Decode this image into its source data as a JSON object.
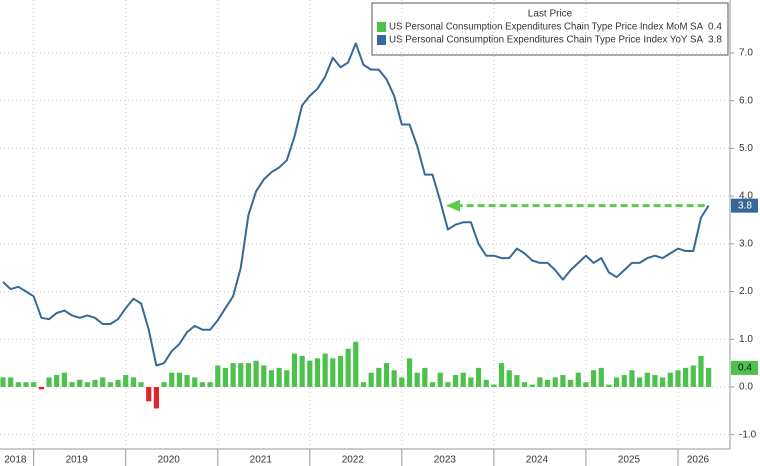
{
  "chart_data": {
    "type": "bar_line",
    "legend_title": "Last Price",
    "legend": "top-right",
    "categories": [
      null,
      null,
      "2018",
      null,
      null,
      null,
      null,
      null,
      null,
      null,
      "2019",
      null,
      null,
      null,
      null,
      null,
      null,
      null,
      null,
      null,
      null,
      null,
      "2020",
      null,
      null,
      null,
      null,
      null,
      null,
      null,
      null,
      null,
      null,
      null,
      "2021",
      null,
      null,
      null,
      null,
      null,
      null,
      null,
      null,
      null,
      null,
      null,
      "2022",
      null,
      null,
      null,
      null,
      null,
      null,
      null,
      null,
      null,
      null,
      null,
      "2023",
      null,
      null,
      null,
      null,
      null,
      null,
      null,
      null,
      null,
      null,
      null,
      "2024",
      null,
      null,
      null,
      null,
      null,
      null,
      null,
      null,
      null,
      null,
      null,
      "2025",
      null,
      null,
      null,
      null,
      null,
      null,
      null,
      null,
      "2026",
      null
    ],
    "series": [
      {
        "name": "US Personal Consumption Expenditures Chain Type Price Index MoM SA",
        "type": "bar",
        "color": "#4cc24c",
        "negative_color": "#e0262a",
        "values": [
          0.2,
          0.2,
          0.1,
          0.1,
          0.1,
          -0.05,
          0.2,
          0.25,
          0.3,
          0.1,
          0.15,
          0.1,
          0.15,
          0.2,
          0.1,
          0.15,
          0.25,
          0.2,
          0.1,
          -0.3,
          -0.45,
          0.1,
          0.3,
          0.3,
          0.25,
          0.2,
          0.1,
          0.1,
          0.45,
          0.4,
          0.5,
          0.5,
          0.5,
          0.55,
          0.45,
          0.35,
          0.4,
          0.35,
          0.7,
          0.65,
          0.55,
          0.6,
          0.7,
          0.6,
          0.65,
          0.8,
          0.95,
          0.1,
          0.3,
          0.4,
          0.5,
          0.35,
          0.2,
          0.6,
          0.3,
          0.4,
          0.1,
          0.3,
          0.1,
          0.25,
          0.3,
          0.2,
          0.4,
          0.15,
          0.05,
          0.5,
          0.35,
          0.25,
          0.1,
          0.05,
          0.2,
          0.15,
          0.2,
          0.25,
          0.15,
          0.3,
          0.1,
          0.35,
          0.4,
          0.05,
          0.2,
          0.25,
          0.35,
          0.2,
          0.3,
          0.25,
          0.2,
          0.3,
          0.35,
          0.4,
          0.45,
          0.65,
          0.4
        ]
      },
      {
        "name": "US Personal Consumption Expenditures Chain Type Price Index YoY SA",
        "type": "line",
        "color": "#36699a",
        "values": [
          2.2,
          2.05,
          2.1,
          2.0,
          1.9,
          1.45,
          1.42,
          1.55,
          1.6,
          1.5,
          1.45,
          1.5,
          1.45,
          1.32,
          1.32,
          1.42,
          1.65,
          1.85,
          1.75,
          1.2,
          0.45,
          0.5,
          0.75,
          0.9,
          1.15,
          1.28,
          1.2,
          1.2,
          1.4,
          1.65,
          1.9,
          2.5,
          3.6,
          4.1,
          4.35,
          4.5,
          4.6,
          4.75,
          5.25,
          5.9,
          6.1,
          6.25,
          6.5,
          6.9,
          6.7,
          6.8,
          7.2,
          6.75,
          6.65,
          6.65,
          6.45,
          6.1,
          5.5,
          5.5,
          5.05,
          4.45,
          4.45,
          3.9,
          3.3,
          3.4,
          3.45,
          3.45,
          3.0,
          2.75,
          2.75,
          2.7,
          2.7,
          2.9,
          2.8,
          2.65,
          2.6,
          2.6,
          2.45,
          2.25,
          2.45,
          2.6,
          2.75,
          2.6,
          2.7,
          2.4,
          2.3,
          2.45,
          2.6,
          2.6,
          2.7,
          2.75,
          2.7,
          2.8,
          2.9,
          2.85,
          2.85,
          3.55,
          3.8
        ]
      }
    ],
    "ylim": [
      -1.3,
      7.9
    ],
    "yticks": [
      {
        "value": -1,
        "label": "-1.0"
      },
      {
        "value": 0,
        "label": "0.0"
      },
      {
        "value": 1,
        "label": "1.0"
      },
      {
        "value": 2,
        "label": "2.0"
      },
      {
        "value": 3,
        "label": "3.0"
      },
      {
        "value": 4,
        "label": "4.0"
      },
      {
        "value": 5,
        "label": "5.0"
      },
      {
        "value": 6,
        "label": "6.0"
      },
      {
        "value": 7,
        "label": "7.0"
      }
    ],
    "grid": true
  }
}
